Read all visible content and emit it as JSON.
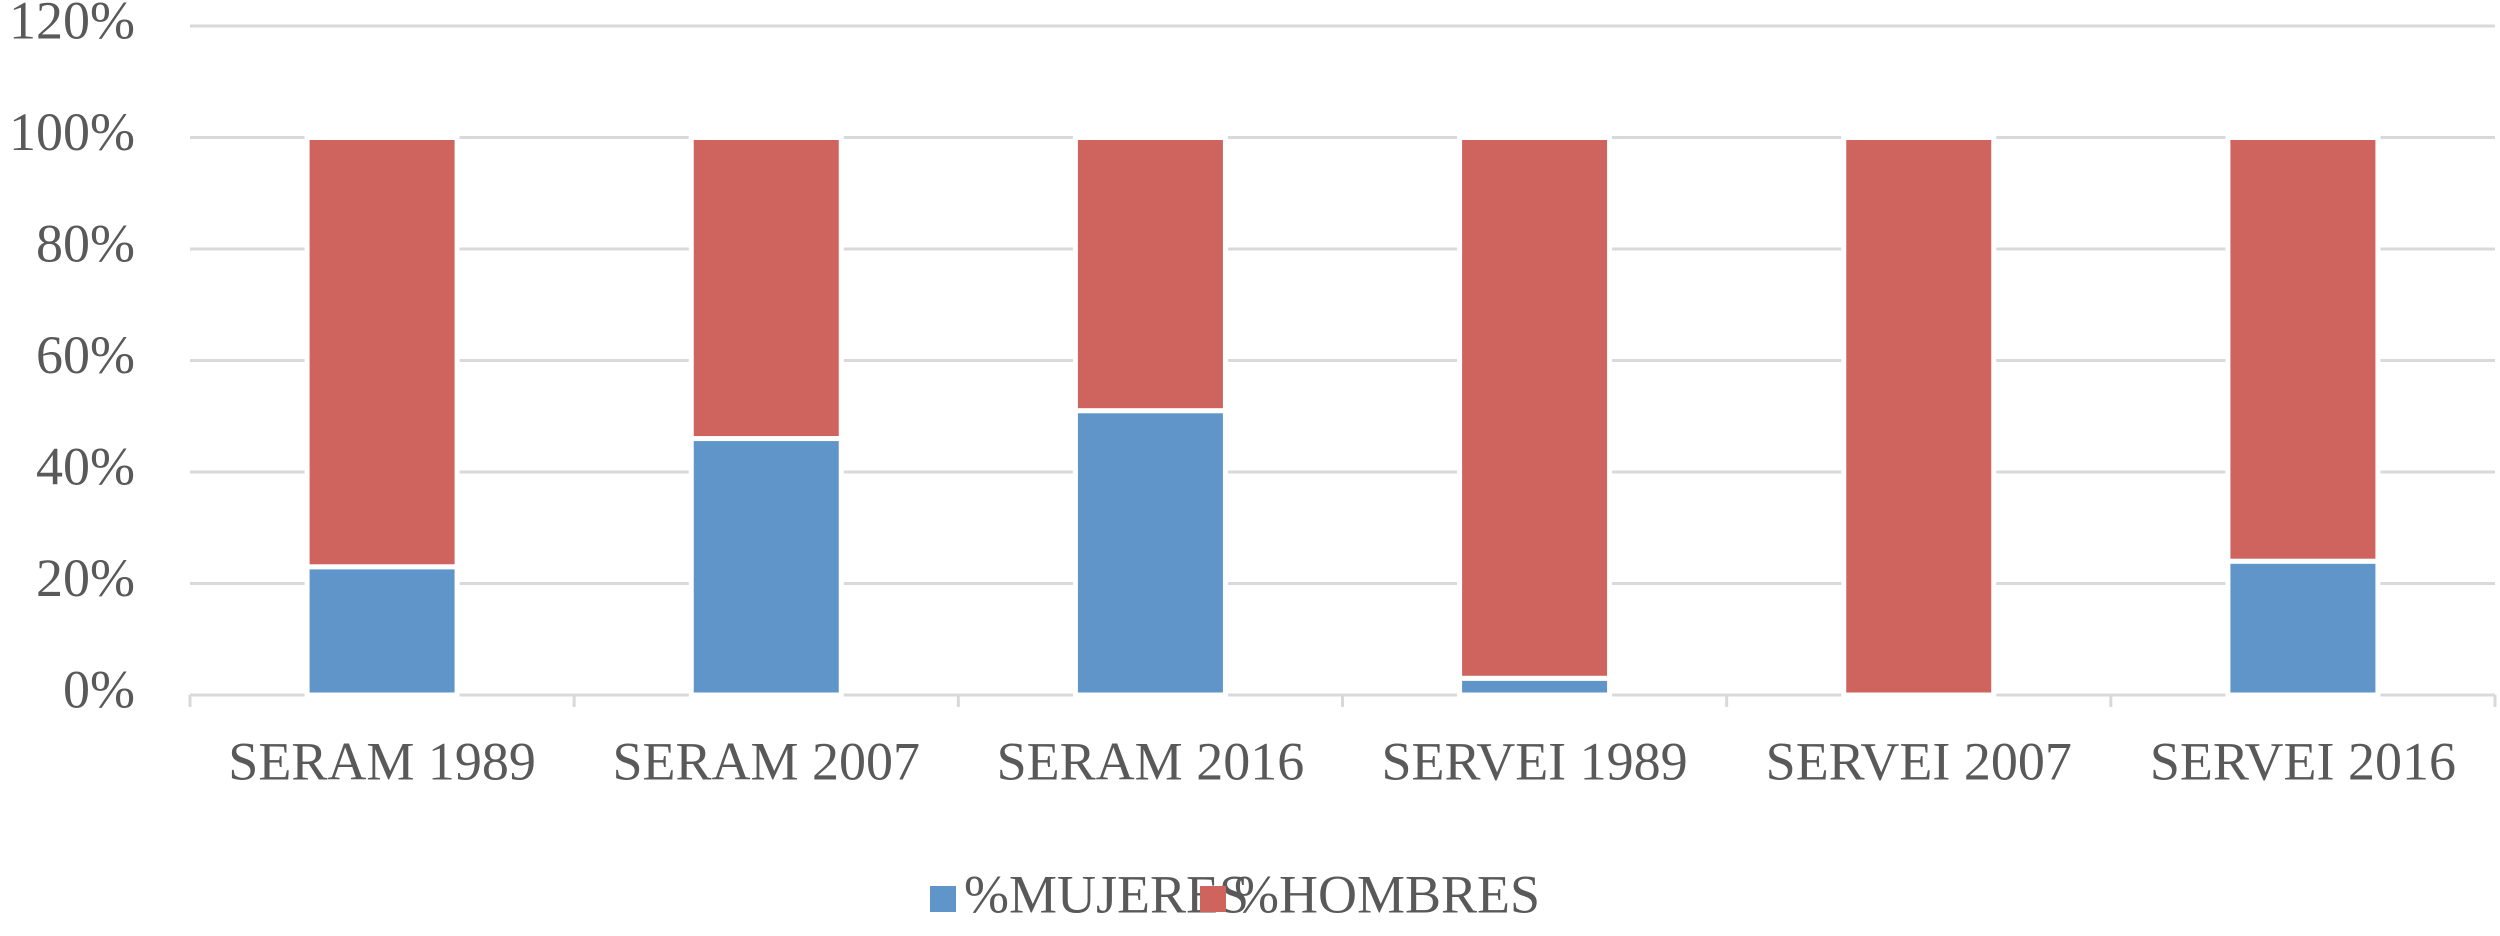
{
  "chart_data": {
    "type": "stacked-bar",
    "categories": [
      "SERAM 1989",
      "SERAM 2007",
      "SERAM 2016",
      "SERVEI 1989",
      "SERVEI 2007",
      "SERVEI 2016"
    ],
    "series": [
      {
        "name": "%MUJERES",
        "color": "#5f95c8",
        "values": [
          23,
          46,
          51,
          3,
          0,
          24
        ]
      },
      {
        "name": "%HOMBRES",
        "color": "#cf645e",
        "values": [
          77,
          54,
          49,
          97,
          100,
          76
        ]
      }
    ],
    "ylim": [
      0,
      120
    ],
    "yticks": [
      {
        "value": 0,
        "label": "0%"
      },
      {
        "value": 20,
        "label": "20%"
      },
      {
        "value": 40,
        "label": "40%"
      },
      {
        "value": 60,
        "label": "60%"
      },
      {
        "value": 80,
        "label": "80%"
      },
      {
        "value": 100,
        "label": "100%"
      },
      {
        "value": 120,
        "label": "120%"
      }
    ],
    "grid": true,
    "legend": "bottom"
  }
}
